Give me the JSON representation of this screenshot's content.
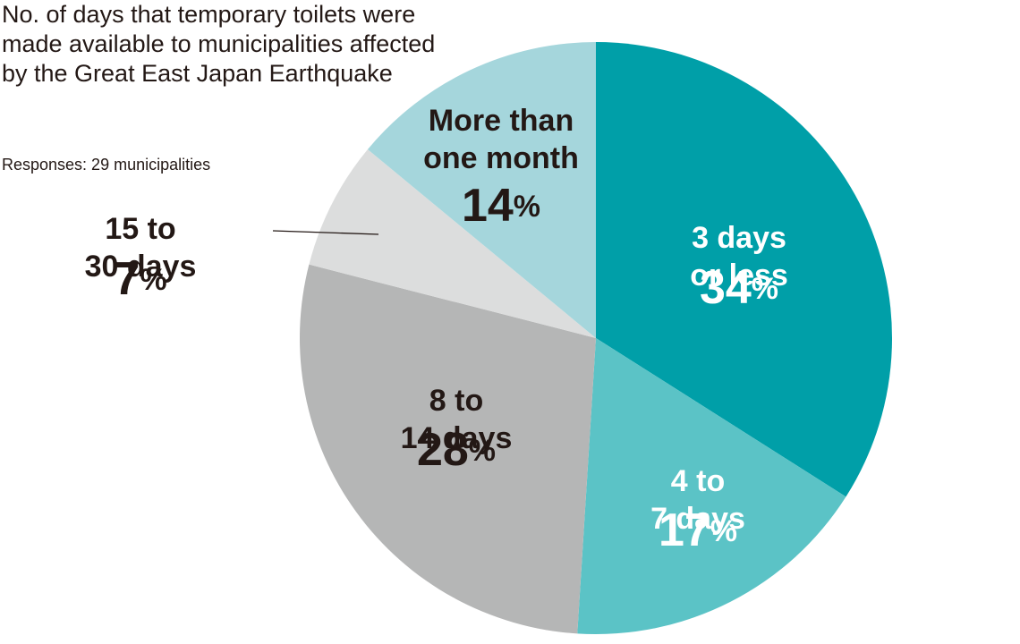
{
  "chart_data": {
    "type": "pie",
    "title": "No. of days that temporary toilets were made available to municipalities affected by the Great East Japan Earthquake",
    "subtitle": "Responses: 29 municipalities",
    "categories": [
      "3 days or less",
      "4 to 7 days",
      "8 to 14 days",
      "15 to 30 days",
      "More than one month"
    ],
    "values": [
      34,
      17,
      28,
      7,
      14
    ],
    "value_labels": [
      "34%",
      "17%",
      "28%",
      "7%",
      "14%"
    ],
    "colors": [
      "#009fa8",
      "#5bc3c6",
      "#b5b6b6",
      "#dcdddd",
      "#a5d6dc"
    ]
  }
}
